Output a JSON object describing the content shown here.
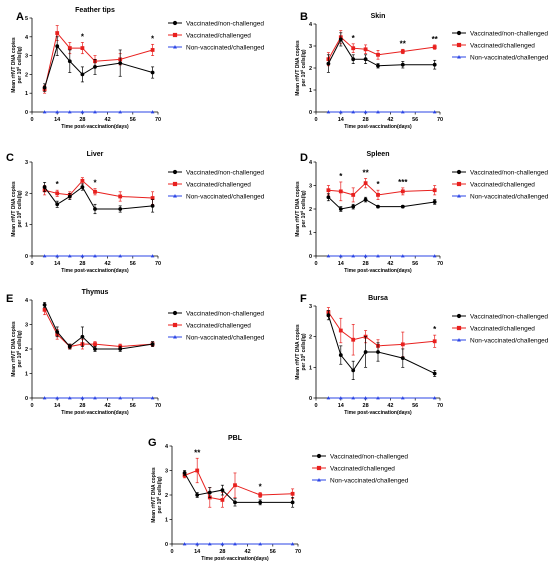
{
  "figure": {
    "xlabel": "Time post-vaccination(days)",
    "ylabel_line1": "Mean rHVT DNA copies",
    "ylabel_line2": "per 10",
    "ylabel_sup": "6",
    "ylabel_line2b": " cells(lg)"
  },
  "legend": {
    "items": [
      {
        "name": "Vaccinated/non-challenged",
        "color": "#000000",
        "marker": "circle"
      },
      {
        "name": "Vaccinated/challenged",
        "color": "#e8201e",
        "marker": "square"
      },
      {
        "name": "Non-vaccinated/challenged",
        "color": "#2b45e6",
        "marker": "triangle"
      }
    ]
  },
  "chart_data": [
    {
      "panel": "A",
      "title": "Feather tips",
      "type": "line",
      "x": [
        7,
        14,
        21,
        28,
        35,
        49,
        67
      ],
      "xlim": [
        0,
        70
      ],
      "xticks": [
        0,
        14,
        28,
        42,
        56,
        70
      ],
      "ylim": [
        0,
        5
      ],
      "yticks": [
        0,
        1,
        2,
        3,
        4,
        5
      ],
      "series": [
        {
          "name": "Vaccinated/non-challenged",
          "values": [
            1.3,
            3.5,
            2.7,
            2.0,
            2.4,
            2.6,
            2.1
          ],
          "errors": [
            0.2,
            0.5,
            0.6,
            0.4,
            0.4,
            0.7,
            0.3
          ]
        },
        {
          "name": "Vaccinated/challenged",
          "values": [
            1.2,
            4.2,
            3.4,
            3.4,
            2.7,
            2.8,
            3.3
          ],
          "errors": [
            0.2,
            0.4,
            0.3,
            0.3,
            0.3,
            0.3,
            0.3
          ]
        },
        {
          "name": "Non-vaccinated/challenged",
          "values": [
            0,
            0,
            0,
            0,
            0,
            0,
            0
          ],
          "errors": [
            0,
            0,
            0,
            0,
            0,
            0,
            0
          ]
        }
      ],
      "significance": [
        {
          "x": 28,
          "label": "*"
        },
        {
          "x": 67,
          "label": "*"
        }
      ]
    },
    {
      "panel": "B",
      "title": "Skin",
      "type": "line",
      "x": [
        7,
        14,
        21,
        28,
        35,
        49,
        67
      ],
      "xlim": [
        0,
        70
      ],
      "xticks": [
        0,
        14,
        28,
        42,
        56,
        70
      ],
      "ylim": [
        0,
        4
      ],
      "yticks": [
        0,
        1,
        2,
        3,
        4
      ],
      "series": [
        {
          "name": "Vaccinated/non-challenged",
          "values": [
            2.2,
            3.3,
            2.4,
            2.4,
            2.1,
            2.15,
            2.15
          ],
          "errors": [
            0.4,
            0.3,
            0.2,
            0.2,
            0.1,
            0.15,
            0.2
          ]
        },
        {
          "name": "Vaccinated/challenged",
          "values": [
            2.4,
            3.4,
            2.9,
            2.85,
            2.6,
            2.75,
            2.95
          ],
          "errors": [
            0.3,
            0.3,
            0.2,
            0.2,
            0.2,
            0.1,
            0.1
          ]
        },
        {
          "name": "Non-vaccinated/challenged",
          "values": [
            0,
            0,
            0,
            0,
            0,
            0,
            0
          ],
          "errors": [
            0,
            0,
            0,
            0,
            0,
            0,
            0
          ]
        }
      ],
      "significance": [
        {
          "x": 21,
          "label": "*"
        },
        {
          "x": 49,
          "label": "**"
        },
        {
          "x": 67,
          "label": "**"
        }
      ]
    },
    {
      "panel": "C",
      "title": "Liver",
      "type": "line",
      "x": [
        7,
        14,
        21,
        28,
        35,
        49,
        67
      ],
      "xlim": [
        0,
        70
      ],
      "xticks": [
        0,
        14,
        28,
        42,
        56,
        70
      ],
      "ylim": [
        0,
        3
      ],
      "yticks": [
        0,
        1,
        2,
        3
      ],
      "series": [
        {
          "name": "Vaccinated/non-challenged",
          "values": [
            2.2,
            1.65,
            1.9,
            2.2,
            1.5,
            1.5,
            1.6
          ],
          "errors": [
            0.15,
            0.1,
            0.1,
            0.1,
            0.15,
            0.1,
            0.2
          ]
        },
        {
          "name": "Vaccinated/challenged",
          "values": [
            2.1,
            2.0,
            1.95,
            2.4,
            2.05,
            1.9,
            1.85
          ],
          "errors": [
            0.15,
            0.1,
            0.1,
            0.1,
            0.1,
            0.15,
            0.2
          ]
        },
        {
          "name": "Non-vaccinated/challenged",
          "values": [
            0,
            0,
            0,
            0,
            0,
            0,
            0
          ],
          "errors": [
            0,
            0,
            0,
            0,
            0,
            0,
            0
          ]
        }
      ],
      "significance": [
        {
          "x": 14,
          "label": "*"
        },
        {
          "x": 35,
          "label": "*"
        }
      ]
    },
    {
      "panel": "D",
      "title": "Spleen",
      "type": "line",
      "x": [
        7,
        14,
        21,
        28,
        35,
        49,
        67
      ],
      "xlim": [
        0,
        70
      ],
      "xticks": [
        0,
        14,
        28,
        42,
        56,
        70
      ],
      "ylim": [
        0,
        4
      ],
      "yticks": [
        0,
        1,
        2,
        3,
        4
      ],
      "series": [
        {
          "name": "Vaccinated/non-challenged",
          "values": [
            2.5,
            2.0,
            2.1,
            2.4,
            2.1,
            2.1,
            2.3
          ],
          "errors": [
            0.15,
            0.1,
            0.1,
            0.1,
            0.05,
            0.05,
            0.1
          ]
        },
        {
          "name": "Vaccinated/challenged",
          "values": [
            2.8,
            2.75,
            2.6,
            3.1,
            2.6,
            2.75,
            2.8
          ],
          "errors": [
            0.2,
            0.4,
            0.3,
            0.2,
            0.2,
            0.15,
            0.2
          ]
        },
        {
          "name": "Non-vaccinated/challenged",
          "values": [
            0,
            0,
            0,
            0,
            0,
            0,
            0
          ],
          "errors": [
            0,
            0,
            0,
            0,
            0,
            0,
            0
          ]
        }
      ],
      "significance": [
        {
          "x": 14,
          "label": "*"
        },
        {
          "x": 28,
          "label": "**"
        },
        {
          "x": 35,
          "label": "*"
        },
        {
          "x": 49,
          "label": "***"
        }
      ]
    },
    {
      "panel": "E",
      "title": "Thymus",
      "type": "line",
      "x": [
        7,
        14,
        21,
        28,
        35,
        49,
        67
      ],
      "xlim": [
        0,
        70
      ],
      "xticks": [
        0,
        14,
        28,
        42,
        56,
        70
      ],
      "ylim": [
        0,
        4
      ],
      "yticks": [
        0,
        1,
        2,
        3,
        4
      ],
      "series": [
        {
          "name": "Vaccinated/non-challenged",
          "values": [
            3.8,
            2.7,
            2.1,
            2.5,
            2.0,
            2.0,
            2.2
          ],
          "errors": [
            0.1,
            0.2,
            0.1,
            0.4,
            0.1,
            0.1,
            0.1
          ]
        },
        {
          "name": "Vaccinated/challenged",
          "values": [
            3.6,
            2.6,
            2.1,
            2.2,
            2.2,
            2.1,
            2.2
          ],
          "errors": [
            0.2,
            0.2,
            0.1,
            0.2,
            0.1,
            0.1,
            0.1
          ]
        },
        {
          "name": "Non-vaccinated/challenged",
          "values": [
            0,
            0,
            0,
            0,
            0,
            0,
            0
          ],
          "errors": [
            0,
            0,
            0,
            0,
            0,
            0,
            0
          ]
        }
      ],
      "significance": []
    },
    {
      "panel": "F",
      "title": "Bursa",
      "type": "line",
      "x": [
        7,
        14,
        21,
        28,
        35,
        49,
        67
      ],
      "xlim": [
        0,
        70
      ],
      "xticks": [
        0,
        14,
        28,
        42,
        56,
        70
      ],
      "ylim": [
        0,
        3
      ],
      "yticks": [
        0,
        1,
        2,
        3
      ],
      "series": [
        {
          "name": "Vaccinated/non-challenged",
          "values": [
            2.7,
            1.4,
            0.9,
            1.5,
            1.5,
            1.3,
            0.8
          ],
          "errors": [
            0.15,
            0.3,
            0.3,
            0.5,
            0.3,
            0.3,
            0.1
          ]
        },
        {
          "name": "Vaccinated/challenged",
          "values": [
            2.8,
            2.2,
            1.9,
            2.0,
            1.7,
            1.75,
            1.85
          ],
          "errors": [
            0.15,
            0.4,
            0.5,
            0.2,
            0.2,
            0.4,
            0.2
          ]
        },
        {
          "name": "Non-vaccinated/challenged",
          "values": [
            0,
            0,
            0,
            0,
            0,
            0,
            0
          ],
          "errors": [
            0,
            0,
            0,
            0,
            0,
            0,
            0
          ]
        }
      ],
      "significance": [
        {
          "x": 67,
          "label": "*"
        }
      ]
    },
    {
      "panel": "G",
      "title": "PBL",
      "type": "line",
      "x": [
        7,
        14,
        21,
        28,
        35,
        49,
        67
      ],
      "xlim": [
        0,
        70
      ],
      "xticks": [
        0,
        14,
        28,
        42,
        56,
        70
      ],
      "ylim": [
        0,
        4
      ],
      "yticks": [
        0,
        1,
        2,
        3,
        4
      ],
      "series": [
        {
          "name": "Vaccinated/non-challenged",
          "values": [
            2.9,
            2.0,
            2.1,
            2.2,
            1.7,
            1.7,
            1.7
          ],
          "errors": [
            0.1,
            0.1,
            0.2,
            0.2,
            0.15,
            0.1,
            0.2
          ]
        },
        {
          "name": "Vaccinated/challenged",
          "values": [
            2.8,
            3.0,
            1.9,
            1.8,
            2.4,
            2.0,
            2.05
          ],
          "errors": [
            0.1,
            0.5,
            0.4,
            0.3,
            0.5,
            0.1,
            0.2
          ]
        },
        {
          "name": "Non-vaccinated/challenged",
          "values": [
            0,
            0,
            0,
            0,
            0,
            0,
            0
          ],
          "errors": [
            0,
            0,
            0,
            0,
            0,
            0,
            0
          ]
        }
      ],
      "significance": [
        {
          "x": 14,
          "label": "**"
        },
        {
          "x": 49,
          "label": "*"
        }
      ]
    }
  ]
}
